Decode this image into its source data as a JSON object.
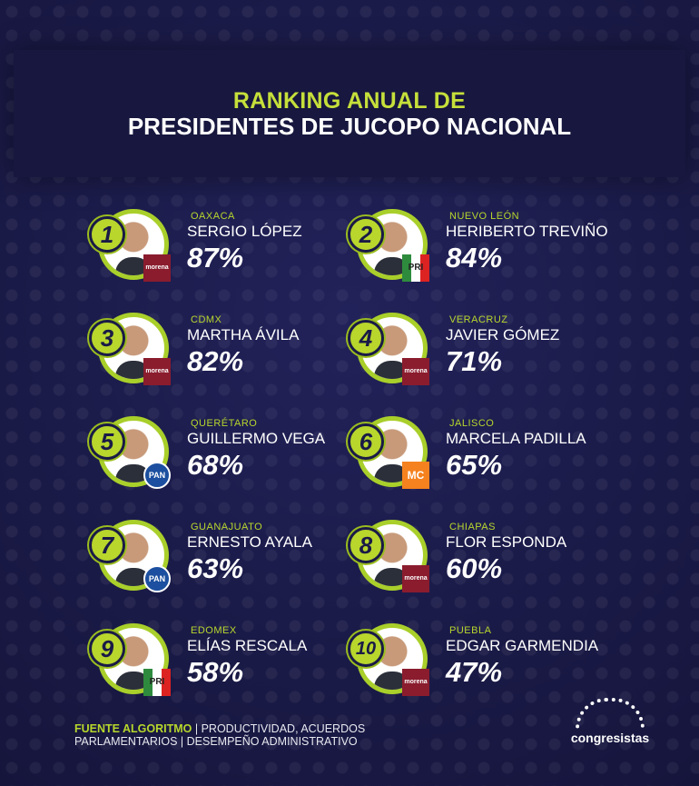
{
  "title": {
    "line1": "RANKING ANUAL DE",
    "line2": "PRESIDENTES DE JUCOPO NACIONAL"
  },
  "ranking": [
    {
      "rank": "1",
      "state": "OAXACA",
      "name": "SERGIO LÓPEZ",
      "percent": "87%",
      "party": "morena"
    },
    {
      "rank": "2",
      "state": "NUEVO LEÓN",
      "name": "HERIBERTO TREVIÑO",
      "percent": "84%",
      "party": "PRI"
    },
    {
      "rank": "3",
      "state": "CDMX",
      "name": "MARTHA ÁVILA",
      "percent": "82%",
      "party": "morena"
    },
    {
      "rank": "4",
      "state": "VERACRUZ",
      "name": "JAVIER GÓMEZ",
      "percent": "71%",
      "party": "morena"
    },
    {
      "rank": "5",
      "state": "QUERÉTARO",
      "name": "GUILLERMO VEGA",
      "percent": "68%",
      "party": "PAN"
    },
    {
      "rank": "6",
      "state": "JALISCO",
      "name": "MARCELA PADILLA",
      "percent": "65%",
      "party": "MC"
    },
    {
      "rank": "7",
      "state": "GUANAJUATO",
      "name": "ERNESTO AYALA",
      "percent": "63%",
      "party": "PAN"
    },
    {
      "rank": "8",
      "state": "CHIAPAS",
      "name": "FLOR ESPONDA",
      "percent": "60%",
      "party": "morena"
    },
    {
      "rank": "9",
      "state": "EDOMEX",
      "name": "ELÍAS RESCALA",
      "percent": "58%",
      "party": "PRI"
    },
    {
      "rank": "10",
      "state": "PUEBLA",
      "name": "EDGAR GARMENDIA",
      "percent": "47%",
      "party": "morena"
    }
  ],
  "footer": {
    "source_label": "FUENTE ALGORITMO",
    "source_text": " | PRODUCTIVIDAD, ACUERDOS",
    "source_text2": "PARLAMENTARIOS | DESEMPEÑO ADMINISTRATIVO"
  },
  "brand": {
    "name": "congresistas"
  },
  "colors": {
    "background": "#1a1a47",
    "accent": "#b8d62c",
    "morena": "#8a1c2e",
    "pan": "#1c4f9f",
    "mc": "#f5821f"
  }
}
